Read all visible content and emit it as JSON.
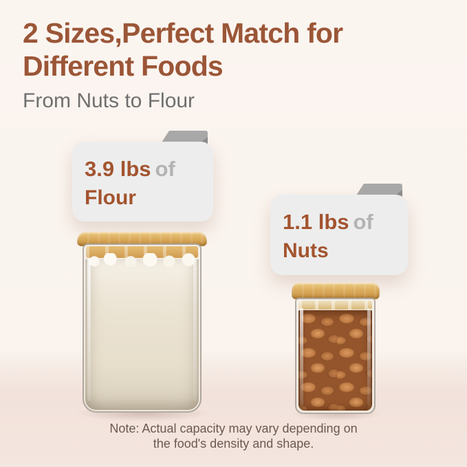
{
  "header": {
    "title_line1": "2 Sizes,Perfect Match for",
    "title_line2": "Different Foods",
    "subtitle": "From Nuts to Flour"
  },
  "badges": [
    {
      "amount": "3.9 lbs",
      "connector": "of",
      "food": "Flour"
    },
    {
      "amount": "1.1 lbs",
      "connector": "of",
      "food": "Nuts"
    }
  ],
  "jars": [
    {
      "name": "large square glass jar with bamboo lid",
      "content": "flour"
    },
    {
      "name": "small square glass jar with bamboo lid",
      "content": "almonds"
    }
  ],
  "note": {
    "line1": "Note: Actual capacity may vary depending on",
    "line2": "the food's density and shape."
  },
  "colors": {
    "title_brown": "#9b5637",
    "badge_text_brown": "#a3542f",
    "connector_gray": "#b3b3b3",
    "subtitle_gray": "#6f6f6f",
    "note_text": "#6b5950",
    "badge_background": "#ededed",
    "folder_tab_gray": "#a9a9a9",
    "folder_tab_fold": "#8c8c8c",
    "bamboo_lid": "#d8a95c",
    "background_top": "#fbf5f0",
    "background_table": "#f3e3dc"
  }
}
